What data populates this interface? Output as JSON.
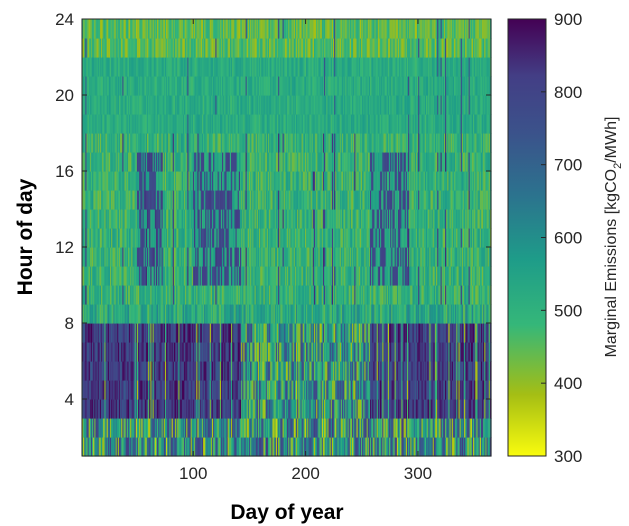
{
  "chart_data": {
    "type": "heatmap",
    "title": "",
    "xlabel": "Day of year",
    "ylabel": "Hour of day",
    "xlim": [
      1,
      365
    ],
    "ylim": [
      1,
      24
    ],
    "x_ticks": [
      100,
      200,
      300
    ],
    "y_ticks": [
      4,
      8,
      12,
      16,
      20,
      24
    ],
    "colorbar": {
      "label_parts": [
        "Marginal Emissions [kgCO",
        "2",
        "/MWh]"
      ],
      "range": [
        300,
        900
      ],
      "ticks": [
        300,
        400,
        500,
        600,
        700,
        800,
        900
      ],
      "colormap": "parula",
      "colors": [
        "#f9fb0e",
        "#a5be14",
        "#35b779",
        "#1e9c89",
        "#2c728e",
        "#3b528b",
        "#433e85",
        "#440154"
      ]
    },
    "description_by_hour_band": [
      {
        "hours": [
          1,
          2
        ],
        "level": "mixed 350-800, highly variable"
      },
      {
        "hours": [
          3,
          7
        ],
        "level": "high 700-900 in winter/autumn, mixed 400-800 in summer"
      },
      {
        "hours": [
          8,
          9
        ],
        "level": "transition ~450-600"
      },
      {
        "hours": [
          10,
          17
        ],
        "level": "medium 420-560, with high 750-900 patches near days 50-70, 100-140, 260-290"
      },
      {
        "hours": [
          18,
          21
        ],
        "level": "medium ~480-560"
      },
      {
        "hours": [
          22,
          24
        ],
        "level": "low-medium 380-500"
      }
    ]
  }
}
